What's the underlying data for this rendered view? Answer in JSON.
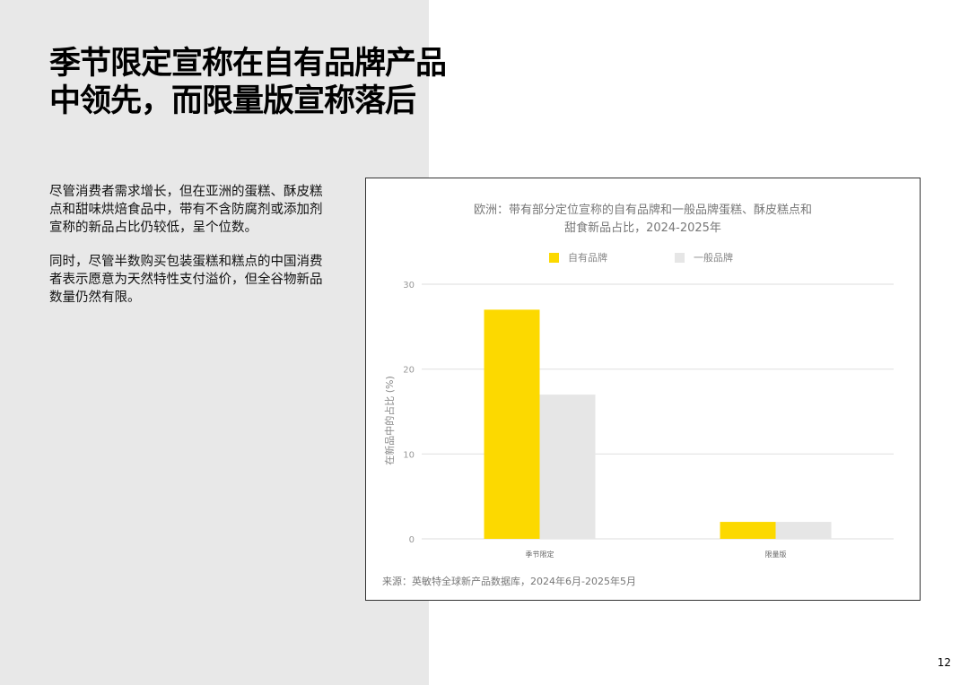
{
  "title_lines": [
    "季节限定宣称在自有品牌产品",
    "中领先，而限量版宣称落后"
  ],
  "paragraphs": [
    "尽管消费者需求增长，但在亚洲的蛋糕、酥皮糕点和甜味烘焙食品中，带有不含防腐剂或添加剂宣称的新品占比仍较低，呈个位数。",
    "同时，尽管半数购买包装蛋糕和糕点的中国消费者表示愿意为天然特性支付溢价，但全谷物新品数量仍然有限。"
  ],
  "page_number": "12",
  "chart_data": {
    "type": "bar",
    "title": "欧洲：带有部分定位宣称的自有品牌和一般品牌蛋糕、酥皮糕点和甜食新品占比，2024-2025年",
    "title_lines": [
      "欧洲：带有部分定位宣称的自有品牌和一般品牌蛋糕、酥皮糕点和",
      "甜食新品占比，2024-2025年"
    ],
    "categories": [
      "季节限定",
      "限量版"
    ],
    "series": [
      {
        "name": "自有品牌",
        "color": "#FCD900",
        "values": [
          27,
          2
        ]
      },
      {
        "name": "一般品牌",
        "color": "#E6E6E6",
        "values": [
          17,
          2
        ]
      }
    ],
    "ylabel": "在新品中的占比 (%)",
    "ylim": [
      0,
      30
    ],
    "yticks": [
      0,
      10,
      20,
      30
    ],
    "grid": true,
    "legend": "top",
    "source": "来源：英敏特全球新产品数据库，2024年6月-2025年5月"
  }
}
